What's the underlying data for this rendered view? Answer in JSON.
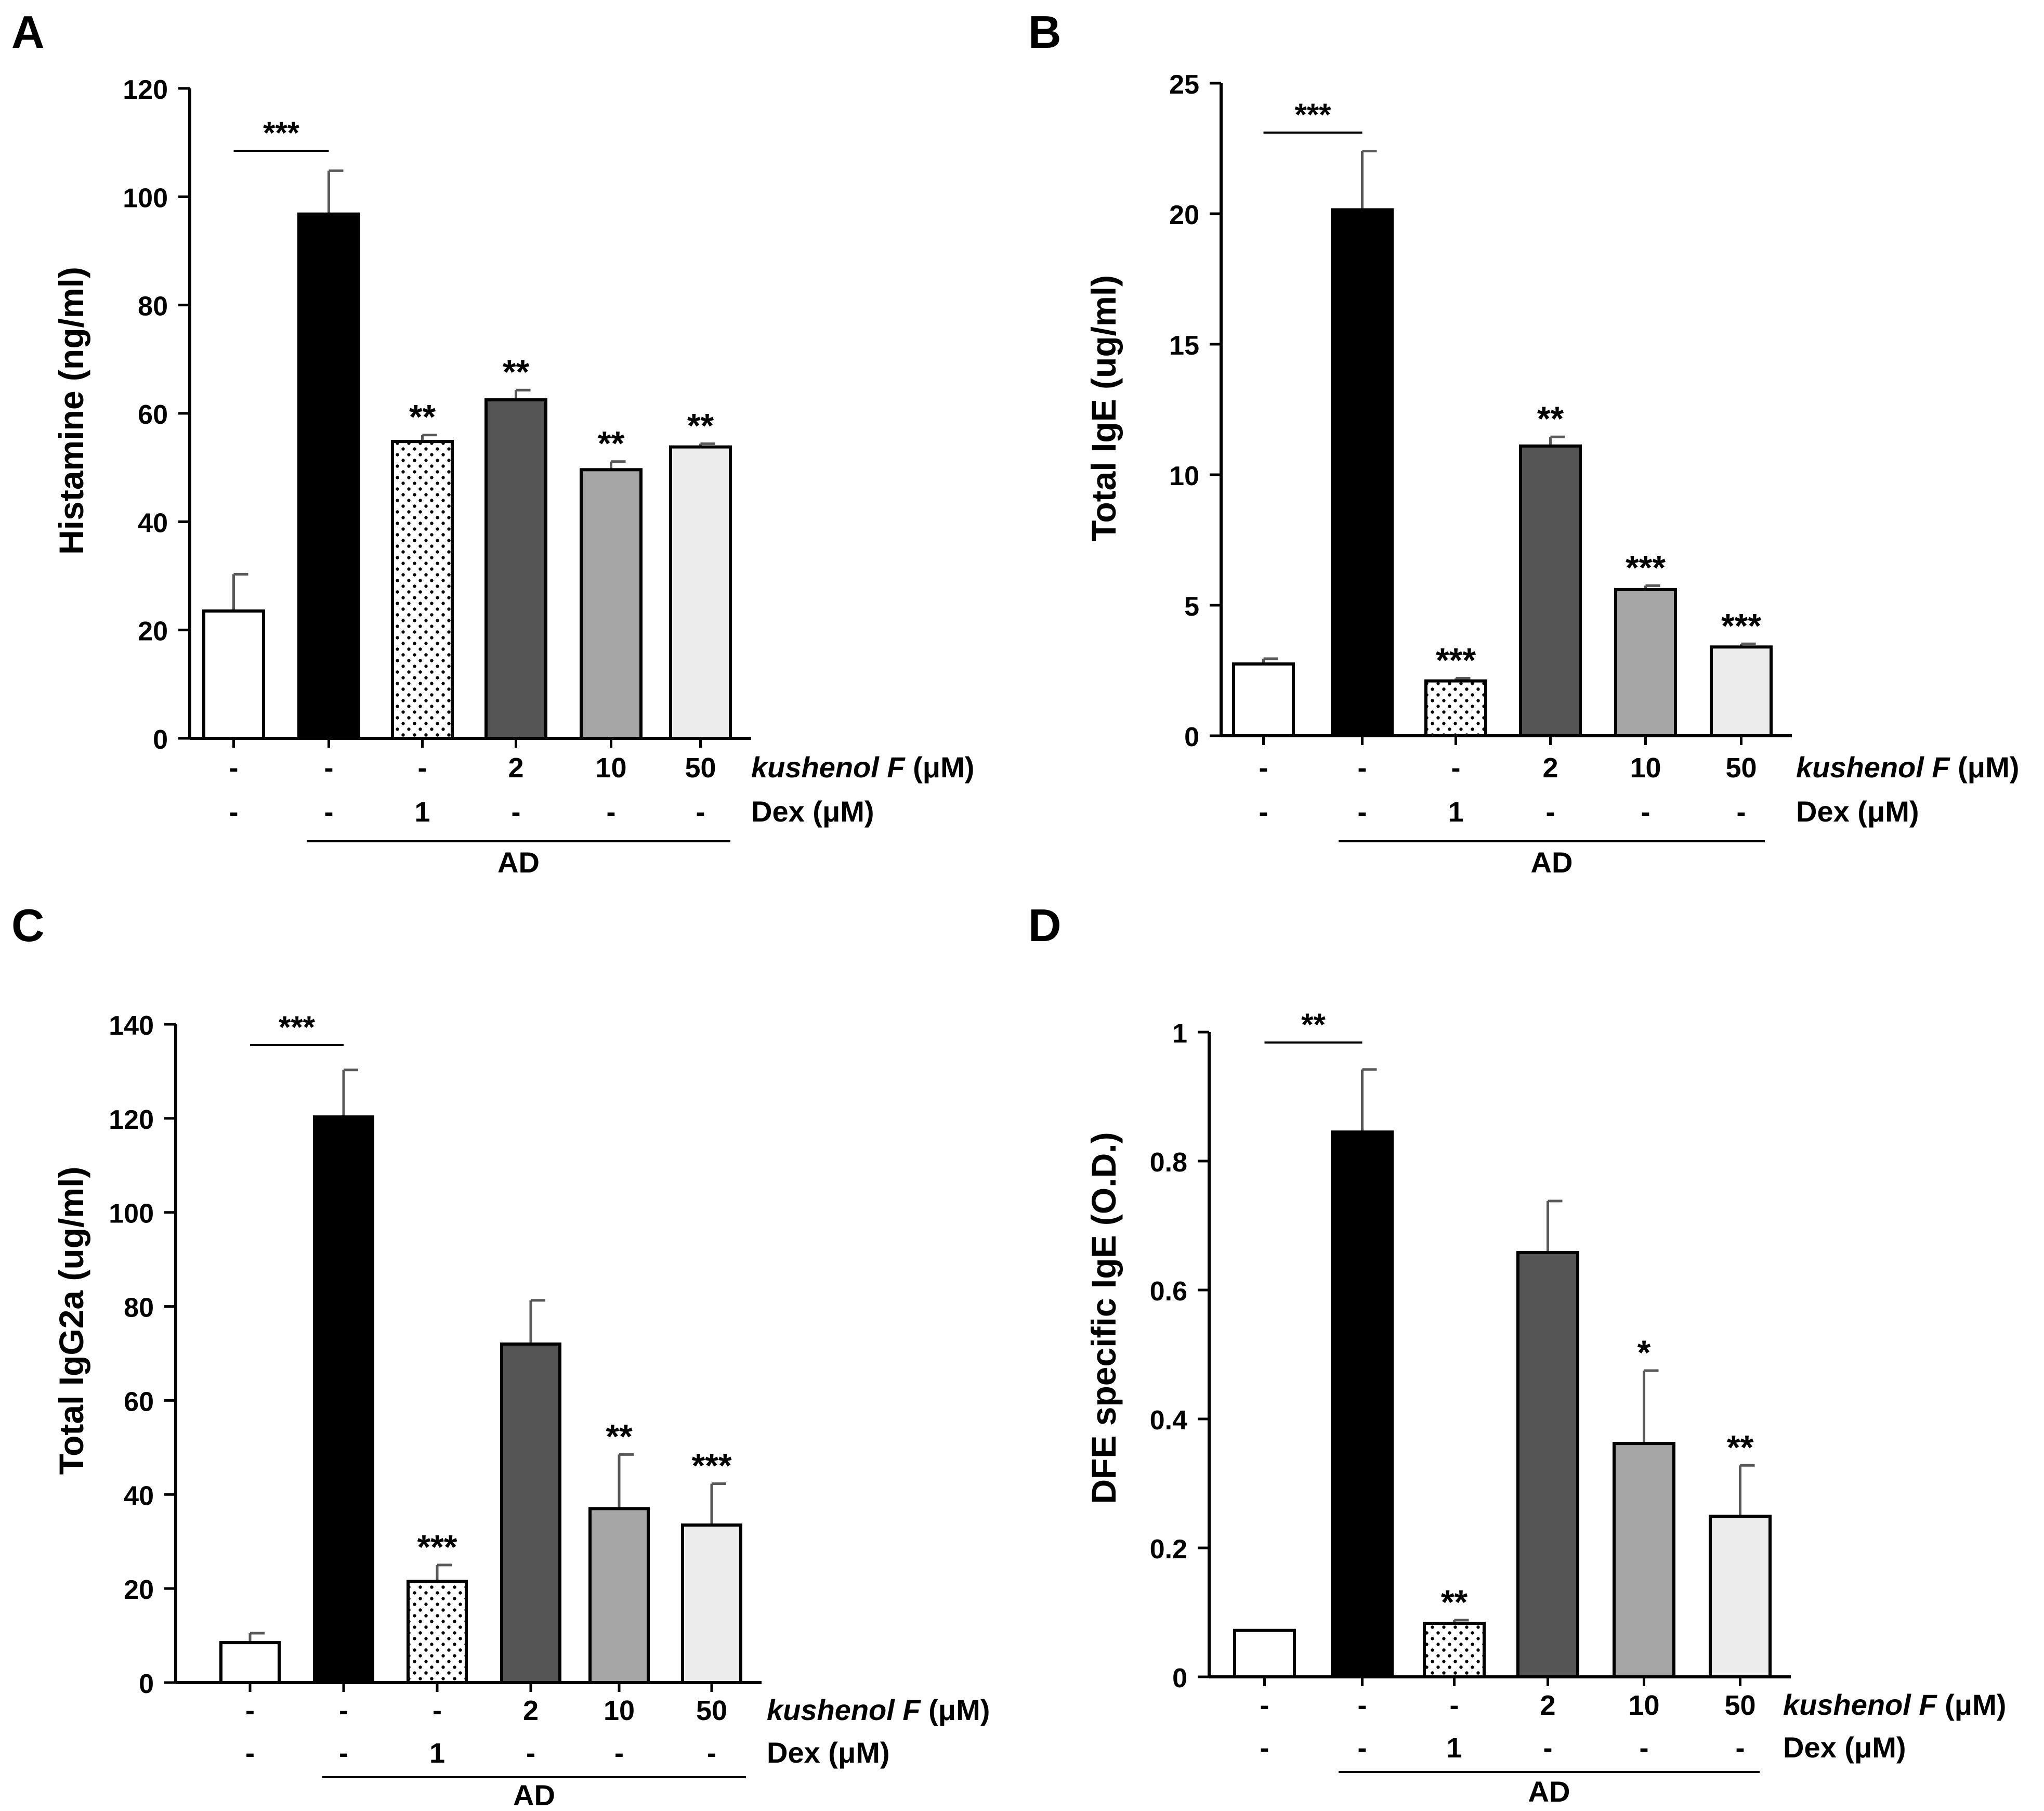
{
  "chart_data": [
    {
      "type": "bar",
      "panel_label": "A",
      "ylabel": "Histamine (ng/ml)",
      "ylim": [
        0,
        120
      ],
      "yticks": [
        "0",
        "20",
        "40",
        "60",
        "80",
        "100",
        "120"
      ],
      "values": [
        23.5,
        96.8,
        54.8,
        62.5,
        49.6,
        53.8
      ],
      "errors": [
        6.8,
        8.0,
        1.2,
        1.8,
        1.5,
        0.6
      ],
      "significance": [
        "",
        "",
        "**",
        "**",
        "**",
        "**"
      ],
      "bracket_label": "***",
      "kushenol_row": [
        "-",
        "-",
        "-",
        "2",
        "10",
        "50"
      ],
      "dex_row": [
        "-",
        "-",
        "1",
        "-",
        "-",
        "-"
      ],
      "kushenol_label": "kushenol F",
      "kushenol_unit": " (μM)",
      "dex_label": "Dex (μM)",
      "group_label": "AD"
    },
    {
      "type": "bar",
      "panel_label": "B",
      "ylabel": "Total IgE (ug/ml)",
      "ylim": [
        0,
        25
      ],
      "yticks": [
        "0",
        "5",
        "10",
        "15",
        "20",
        "25"
      ],
      "values": [
        2.75,
        20.15,
        2.1,
        11.1,
        5.6,
        3.4
      ],
      "errors": [
        0.2,
        2.25,
        0.1,
        0.35,
        0.15,
        0.12
      ],
      "significance": [
        "",
        "",
        "***",
        "**",
        "***",
        "***"
      ],
      "bracket_label": "***",
      "kushenol_row": [
        "-",
        "-",
        "-",
        "2",
        "10",
        "50"
      ],
      "dex_row": [
        "-",
        "-",
        "1",
        "-",
        "-",
        "-"
      ],
      "kushenol_label": "kushenol F",
      "kushenol_unit": " (μM)",
      "dex_label": "Dex (μM)",
      "group_label": "AD"
    },
    {
      "type": "bar",
      "panel_label": "C",
      "ylabel": "Total IgG2a (ug/ml)",
      "ylim": [
        0,
        140
      ],
      "yticks": [
        "0",
        "20",
        "40",
        "60",
        "80",
        "100",
        "120",
        "140"
      ],
      "values": [
        8.5,
        120.3,
        21.5,
        72.0,
        37.0,
        33.5
      ],
      "errors": [
        2.0,
        10.0,
        3.5,
        9.3,
        11.5,
        8.8
      ],
      "significance": [
        "",
        "",
        "***",
        "",
        "**",
        "***"
      ],
      "bracket_label": "***",
      "kushenol_row": [
        "-",
        "-",
        "-",
        "2",
        "10",
        "50"
      ],
      "dex_row": [
        "-",
        "-",
        "1",
        "-",
        "-",
        "-"
      ],
      "kushenol_label": "kushenol F",
      "kushenol_unit": " (μM)",
      "dex_label": "Dex (μM)",
      "group_label": "AD"
    },
    {
      "type": "bar",
      "panel_label": "D",
      "ylabel": "DFE specific IgE (O.D.)",
      "ylim": [
        0,
        1
      ],
      "yticks": [
        "0",
        "0.2",
        "0.4",
        "0.6",
        "0.8",
        "1"
      ],
      "values": [
        0.072,
        0.845,
        0.083,
        0.658,
        0.362,
        0.249
      ],
      "errors": [
        0.0,
        0.097,
        0.005,
        0.08,
        0.113,
        0.079
      ],
      "significance": [
        "",
        "",
        "**",
        "",
        "*",
        "**"
      ],
      "bracket_label": "**",
      "kushenol_row": [
        "-",
        "-",
        "-",
        "2",
        "10",
        "50"
      ],
      "dex_row": [
        "-",
        "-",
        "1",
        "-",
        "-",
        "-"
      ],
      "kushenol_label": "kushenol F",
      "kushenol_unit": " (μM)",
      "dex_label": "Dex (μM)",
      "group_label": "AD"
    }
  ],
  "bar_fills": [
    "#ffffff",
    "#000000",
    "dots",
    "#555555",
    "#a6a6a6",
    "#ececec"
  ],
  "colors": {
    "axis": "#000000",
    "error_bar": "#595959",
    "bar_stroke": "#000000"
  }
}
